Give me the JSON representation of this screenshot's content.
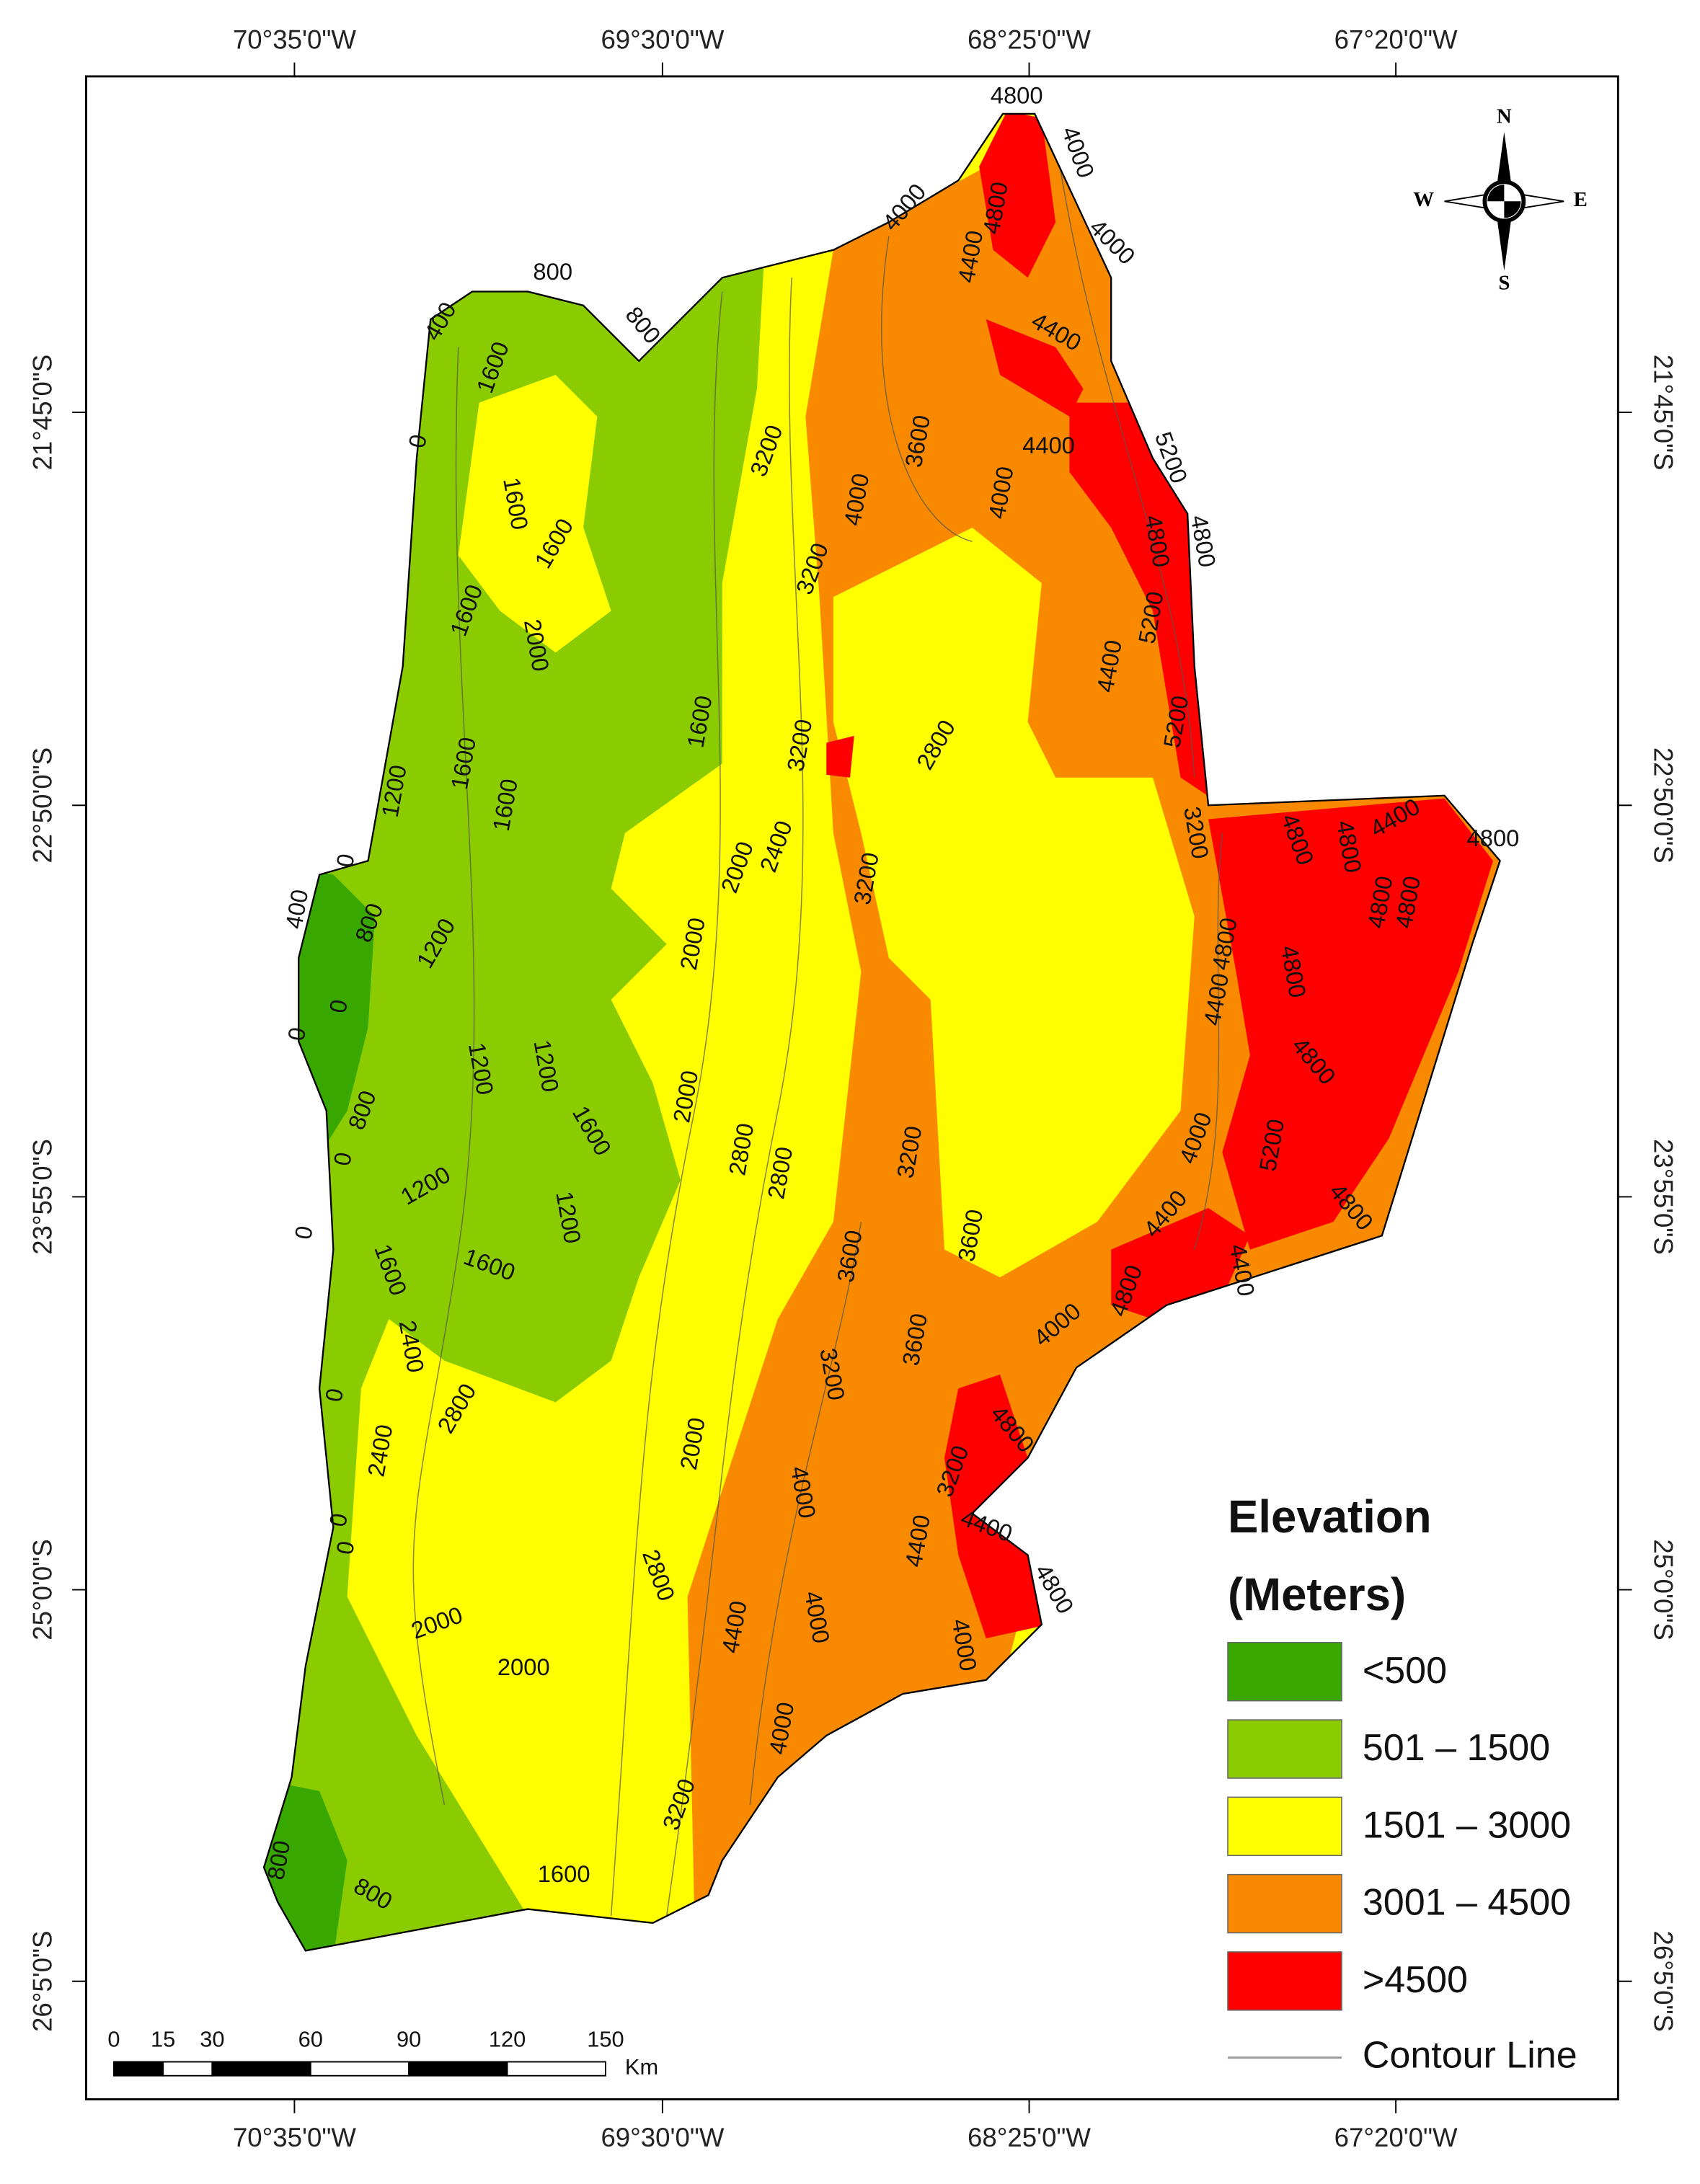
{
  "map": {
    "longitude_labels": [
      "70°35'0\"W",
      "69°30'0\"W",
      "68°25'0\"W",
      "67°20'0\"W"
    ],
    "latitude_labels": [
      "21°45'0\"S",
      "22°50'0\"S",
      "23°55'0\"S",
      "25°0'0\"S",
      "26°5'0\"S"
    ],
    "compass": {
      "north": "N",
      "south": "S",
      "east": "E",
      "west": "W"
    },
    "legend": {
      "title": "Elevation",
      "subtitle": "(Meters)",
      "items": [
        {
          "label": "<500",
          "color": "#38a800"
        },
        {
          "label": "501 – 1500",
          "color": "#8acc00"
        },
        {
          "label": "1501 – 3000",
          "color": "#ffff00"
        },
        {
          "label": "3001 – 4500",
          "color": "#f98a00"
        },
        {
          "label": ">4500",
          "color": "#ff0000"
        }
      ],
      "contour_line": "Contour Line"
    },
    "scale_bar": {
      "ticks": [
        0,
        15,
        30,
        60,
        90,
        120,
        150
      ],
      "unit": "Km"
    },
    "contour_labels": [
      4800,
      4000,
      4000,
      4800,
      4000,
      800,
      400,
      800,
      4400,
      4400,
      1600,
      0,
      3200,
      3600,
      4400,
      5200,
      1600,
      4000,
      4000,
      4800,
      4800,
      1600,
      3200,
      1600,
      2000,
      5200,
      4400,
      1600,
      3200,
      2800,
      5200,
      1600,
      1200,
      1600,
      2000,
      2400,
      0,
      4400,
      4800,
      3200,
      4800,
      4800,
      4800,
      3200,
      400,
      4800,
      2000,
      800,
      4800,
      1200,
      4800,
      4400,
      0,
      0,
      1200,
      1200,
      4800,
      2000,
      800,
      2800,
      3200,
      2800,
      1600,
      4000,
      5200,
      0,
      1200,
      1200,
      4400,
      4800,
      0,
      3600,
      3600,
      1600,
      1600,
      4400,
      4800,
      4000,
      2400,
      3600,
      3200,
      2800,
      0,
      2000,
      4800,
      2400,
      3200,
      4000,
      4400,
      4800,
      4400,
      0,
      0,
      2800,
      4000,
      2000,
      4400,
      4000,
      2000,
      4000,
      3200,
      1600,
      800,
      800
    ]
  }
}
